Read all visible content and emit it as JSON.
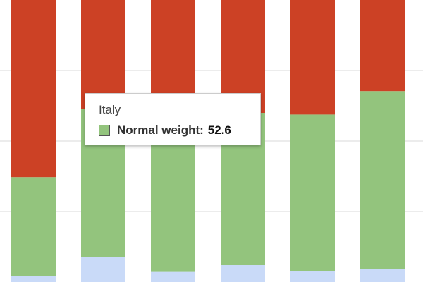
{
  "chart_data": {
    "type": "bar",
    "stacked": true,
    "percent": true,
    "ylim": [
      0,
      100
    ],
    "grid": true,
    "series": [
      {
        "name": "",
        "color": "#c9daf8",
        "values": [
          2.2,
          8.8,
          3.6,
          6.0,
          4.0,
          4.5
        ]
      },
      {
        "name": "Normal weight",
        "color": "#93c47d",
        "values": [
          35.0,
          52.6,
          52.8,
          54.0,
          55.4,
          63.2
        ]
      },
      {
        "name": "",
        "color": "#cc4125",
        "values": [
          62.8,
          38.6,
          43.6,
          40.0,
          40.6,
          32.3
        ]
      }
    ]
  },
  "tooltip": {
    "title": "Italy",
    "series_label": "Normal weight",
    "separator": ":",
    "value": "52.6",
    "swatch_color": "#93c47d"
  }
}
